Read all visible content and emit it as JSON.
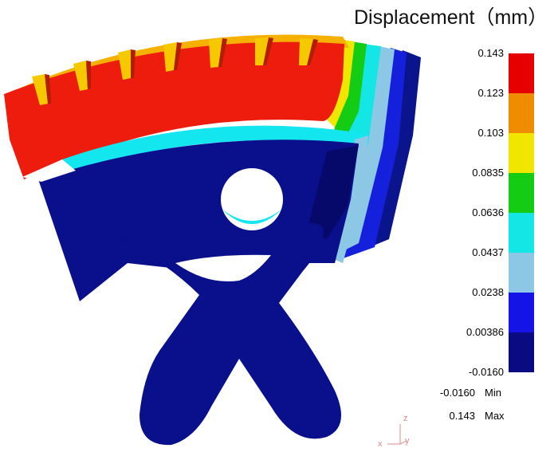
{
  "legend": {
    "title": "Displacement（mm）",
    "ticks": [
      "0.143",
      "0.123",
      "0.103",
      "0.0835",
      "0.0636",
      "0.0437",
      "0.0238",
      "0.00386",
      "-0.0160"
    ],
    "bands": [
      "#e60000",
      "#f08c00",
      "#f0e600",
      "#14cc14",
      "#14e6e6",
      "#8cc8e6",
      "#1414e6",
      "#0a0a82"
    ],
    "min_value": "-0.0160",
    "min_label": "Min",
    "max_value": "0.143",
    "max_label": "Max"
  },
  "axes": {
    "z": "z",
    "x": "x",
    "y": "y"
  },
  "colors": {
    "body": "#0a0f8c",
    "rim": "#ee1c0c",
    "ring_cyan": "#14e6f0"
  }
}
